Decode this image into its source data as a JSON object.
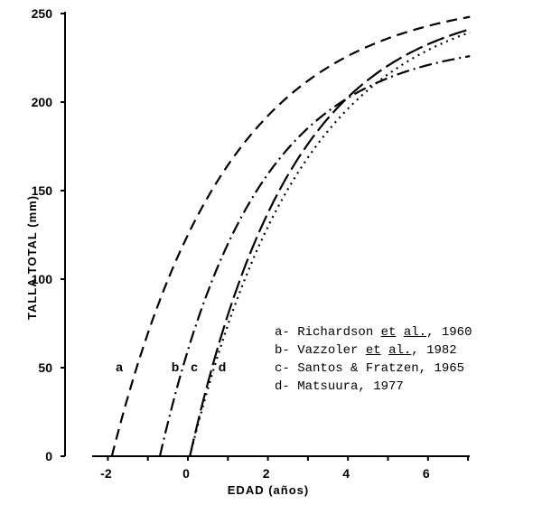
{
  "chart_data": {
    "type": "line",
    "title": "",
    "xlabel": "EDAD (años)",
    "ylabel": "TALLA TOTAL (mm)",
    "xlim": [
      -2.3,
      7.2
    ],
    "ylim": [
      0,
      250
    ],
    "x_ticks": [
      -2,
      0,
      2,
      4,
      6
    ],
    "y_ticks": [
      0,
      50,
      100,
      150,
      200,
      250
    ],
    "grid": false,
    "legend_position": "lower right",
    "series": [
      {
        "id": "a",
        "name": "Richardson et al., 1960",
        "style": "dashed",
        "model": {
          "Linf": 260,
          "k": 0.345,
          "t0": -1.9
        },
        "x": [
          -1.9,
          -1,
          0,
          1,
          2,
          3,
          4,
          5,
          6,
          7
        ],
        "values": [
          0,
          69,
          125,
          163,
          190,
          209,
          222,
          232,
          238,
          248
        ]
      },
      {
        "id": "b",
        "name": "Vazzoler et al., 1982",
        "style": "dashdot",
        "model": {
          "Linf": 235,
          "k": 0.42,
          "t0": -0.7
        },
        "x": [
          -0.7,
          0,
          1,
          2,
          3,
          4,
          5,
          6,
          7
        ],
        "values": [
          0,
          60,
          121,
          159,
          184,
          205,
          216,
          223,
          230
        ]
      },
      {
        "id": "c",
        "name": "Santos & Fratzen, 1965",
        "style": "longdash",
        "model": {
          "Linf": 258,
          "k": 0.39,
          "t0": 0.05
        },
        "x": [
          0.05,
          1,
          2,
          3,
          4,
          5,
          6,
          7
        ],
        "values": [
          0,
          80,
          139,
          180,
          209,
          228,
          238,
          245
        ]
      },
      {
        "id": "d",
        "name": "Matsuura, 1977",
        "style": "dotted",
        "model": {
          "Linf": 262,
          "k": 0.35,
          "t0": 0.05
        },
        "x": [
          0.05,
          1,
          2,
          3,
          4,
          5,
          6,
          7
        ],
        "values": [
          0,
          74,
          129,
          168,
          198,
          218,
          233,
          243
        ]
      }
    ]
  },
  "axes": {
    "x_label": "EDAD (años)",
    "y_label": "TALLA TOTAL (mm)"
  },
  "curve_labels": {
    "a": "a",
    "b": "b",
    "c": "c",
    "d": "d"
  },
  "legend": {
    "items": [
      {
        "prefix": "a- ",
        "text": "Richardson ",
        "u1": "et",
        "sp": " ",
        "u2": "al.",
        "suffix": ", 1960"
      },
      {
        "prefix": "b- ",
        "text": "Vazzoler ",
        "u1": "et",
        "sp": " ",
        "u2": "al.",
        "suffix": ", 1982"
      },
      {
        "prefix": "c- ",
        "text": "Santos & Fratzen, 1965",
        "u1": "",
        "sp": "",
        "u2": "",
        "suffix": ""
      },
      {
        "prefix": "d- ",
        "text": "Matsuura, 1977",
        "u1": "",
        "sp": "",
        "u2": "",
        "suffix": ""
      }
    ]
  }
}
